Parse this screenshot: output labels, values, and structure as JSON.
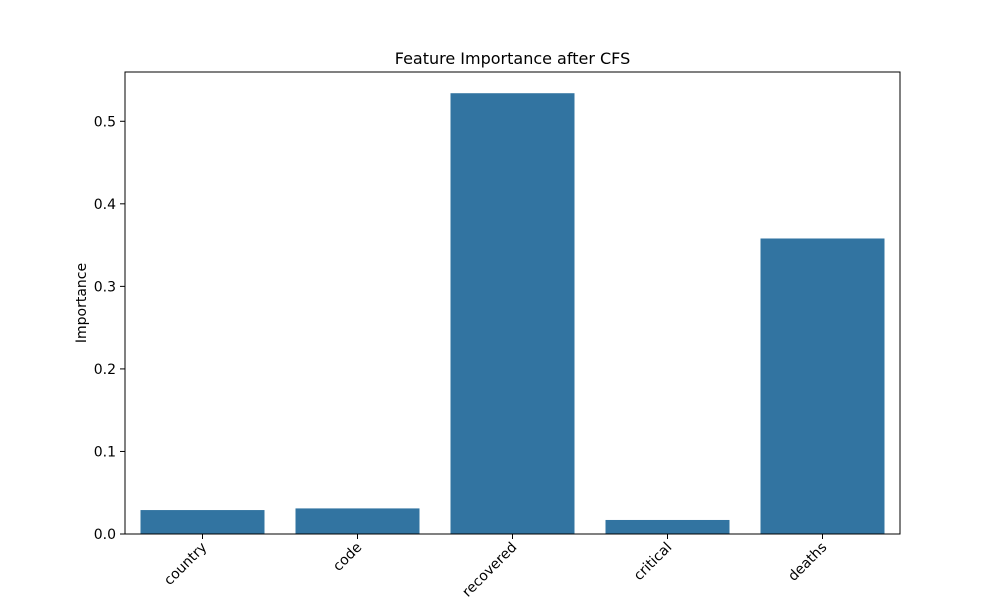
{
  "chart_data": {
    "type": "bar",
    "title": "Feature Importance after CFS",
    "xlabel": "",
    "ylabel": "Importance",
    "categories": [
      "country",
      "code",
      "recovered",
      "critical",
      "deaths"
    ],
    "values": [
      0.029,
      0.031,
      0.534,
      0.017,
      0.358
    ],
    "ylim": [
      0,
      0.5597
    ],
    "yticks": [
      0.0,
      0.1,
      0.2,
      0.3,
      0.4,
      0.5
    ],
    "ytick_labels": [
      "0.0",
      "0.1",
      "0.2",
      "0.3",
      "0.4",
      "0.5"
    ],
    "grid": false,
    "legend": "none",
    "bar_color": "#3274a1",
    "xtick_rotation_deg": 45
  }
}
